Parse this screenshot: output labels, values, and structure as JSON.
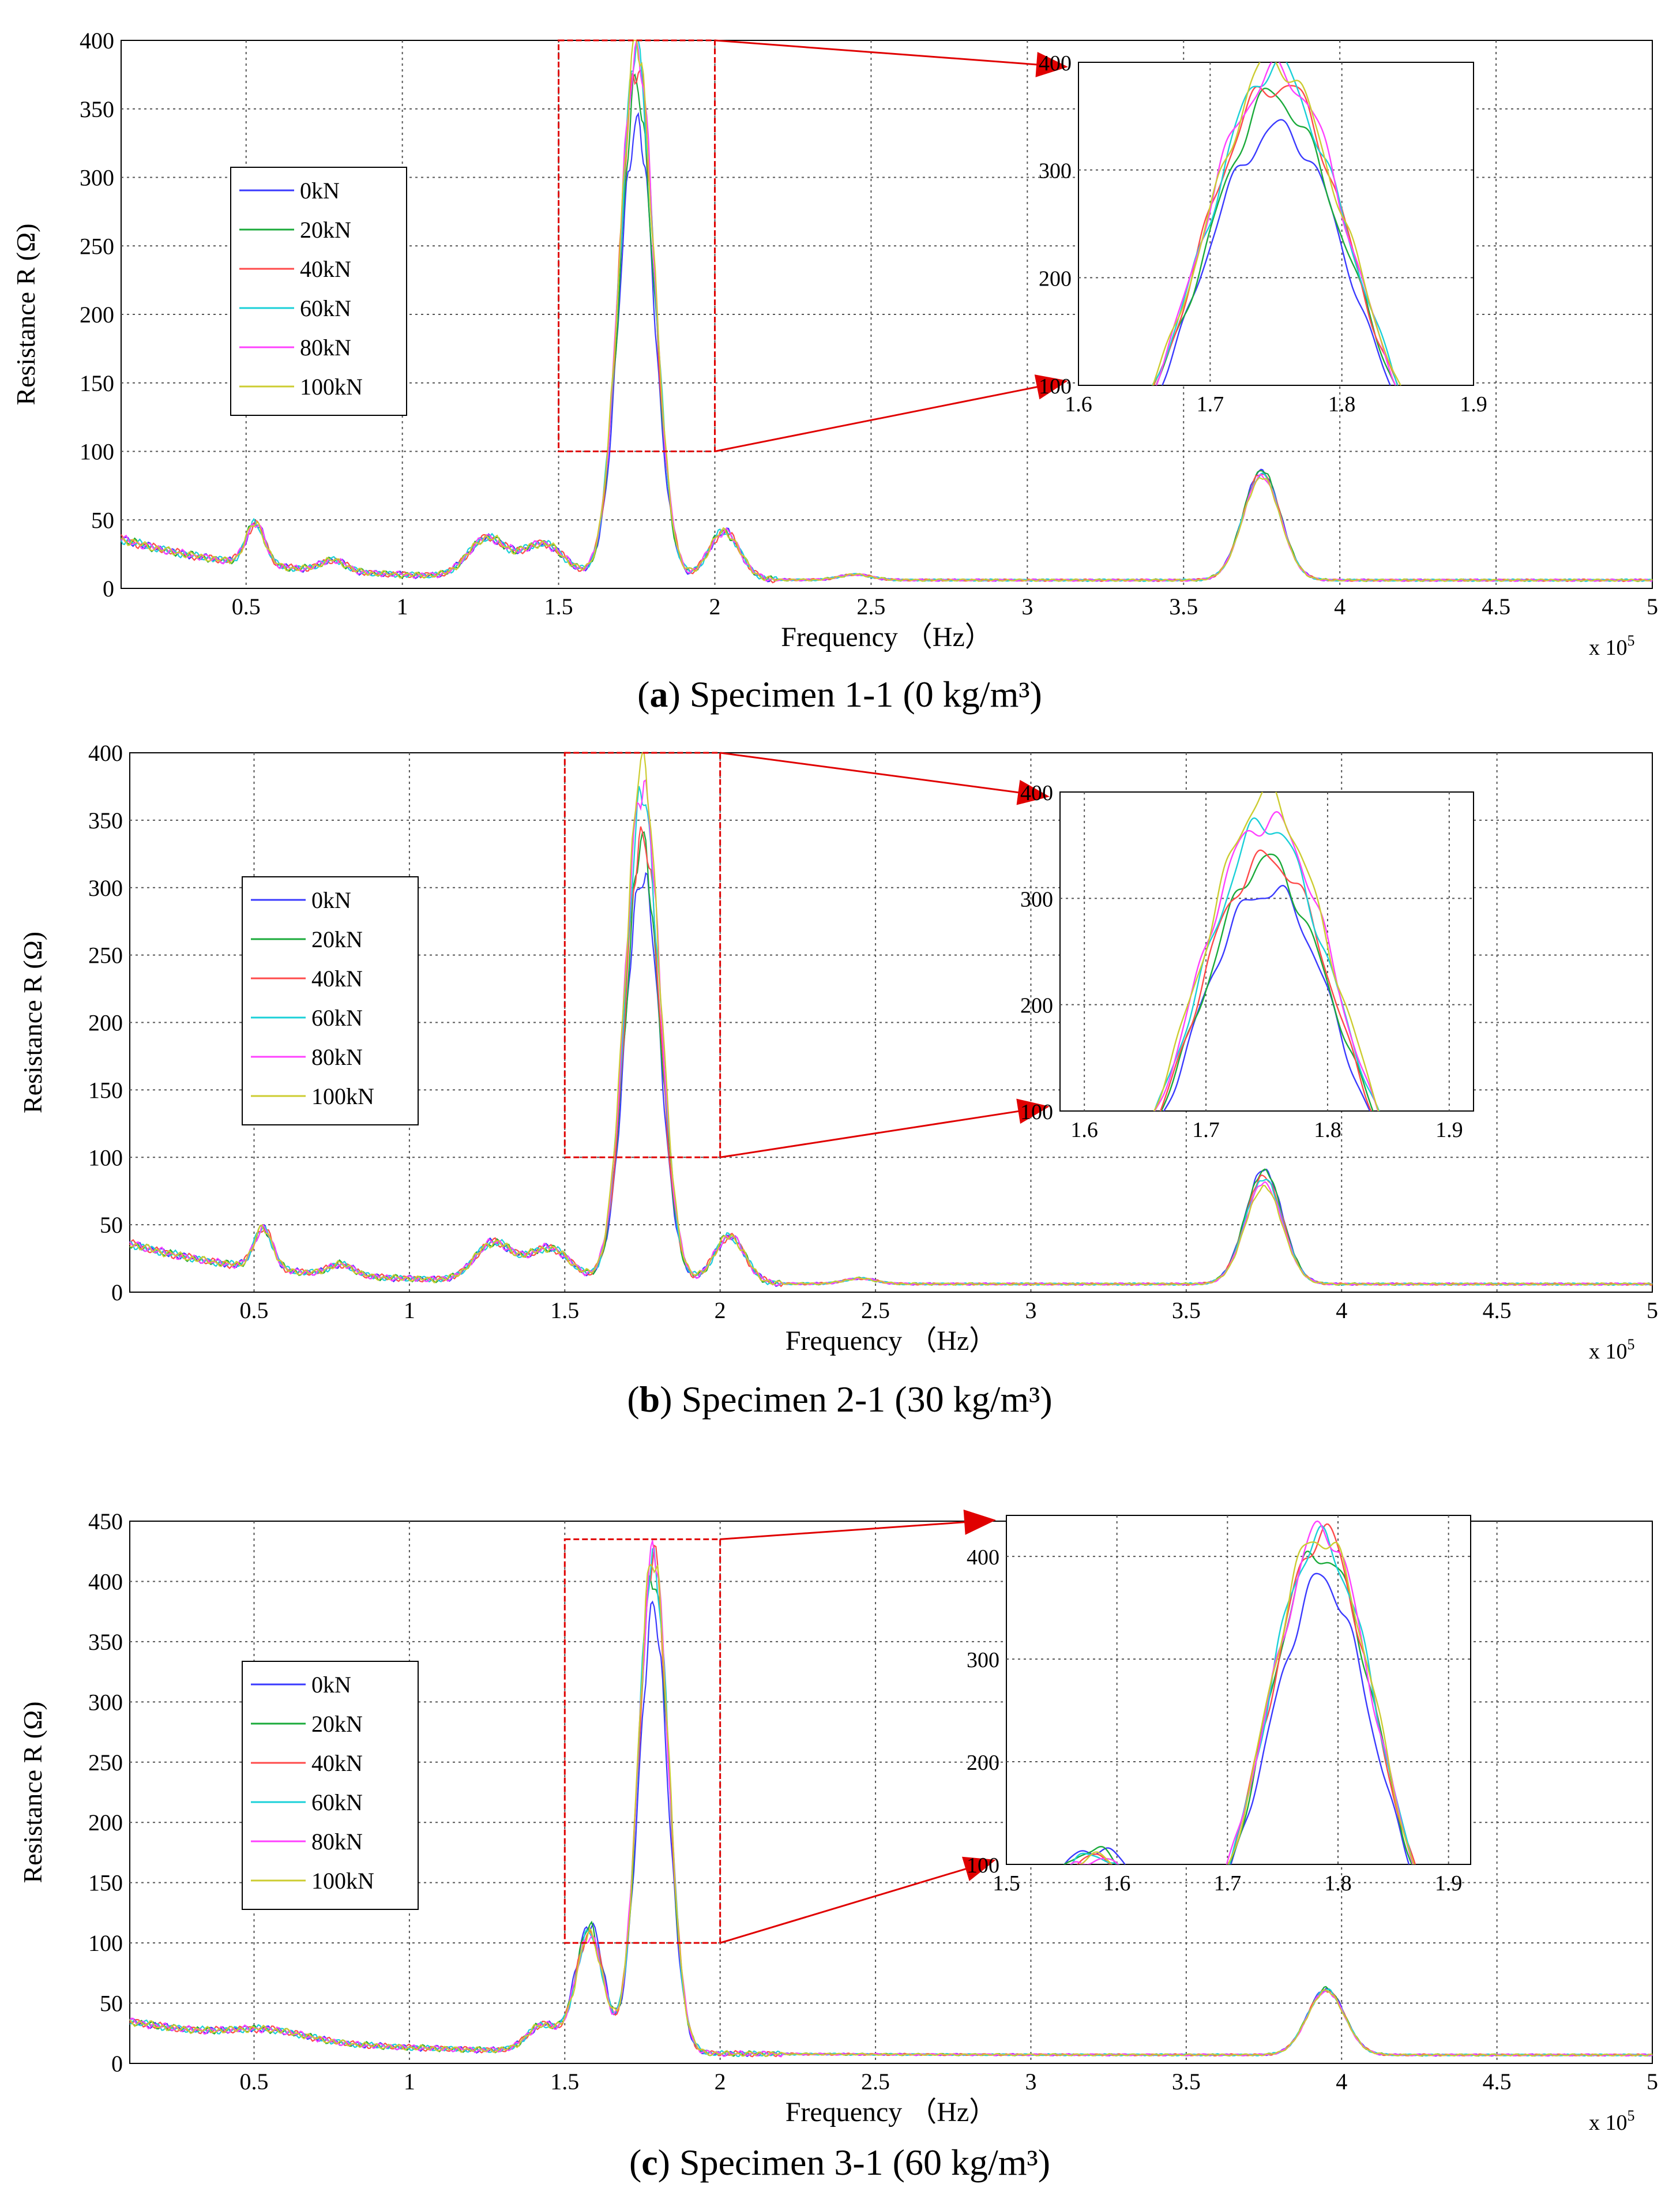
{
  "colors": {
    "series": [
      "#3a3aff",
      "#1aaa3a",
      "#ff4a4a",
      "#1ad0d8",
      "#ff40ff",
      "#cccc30"
    ],
    "highlight": "#e00000",
    "grid": "#555555"
  },
  "chart_data": [
    {
      "type": "line",
      "panel": "a",
      "caption": {
        "letter": "a",
        "text": " Specimen 1-1 (0 kg/m³)"
      },
      "xlabel": "Frequency （Hz）",
      "x_multiplier": "x 10",
      "x_multiplier_exp": "5",
      "ylabel": "Resistance R (Ω)",
      "xlim": [
        0.1,
        5
      ],
      "ylim": [
        0,
        400
      ],
      "x_ticks": [
        0.5,
        1,
        1.5,
        2,
        2.5,
        3,
        3.5,
        4,
        4.5,
        5
      ],
      "x_tick_labels": [
        "0.5",
        "1",
        "1.5",
        "2",
        "2.5",
        "3",
        "3.5",
        "4",
        "4.5",
        "5"
      ],
      "y_ticks": [
        0,
        50,
        100,
        150,
        200,
        250,
        300,
        350,
        400
      ],
      "y_tick_labels": [
        "0",
        "50",
        "100",
        "150",
        "200",
        "250",
        "300",
        "350",
        "400"
      ],
      "legend": [
        "0kN",
        "20kN",
        "40kN",
        "60kN",
        "80kN",
        "100kN"
      ],
      "legend_position": "left",
      "highlight_box": {
        "x": [
          1.5,
          2.0
        ],
        "y": [
          100,
          400
        ]
      },
      "peak1": {
        "center": 1.75,
        "heights": [
          335,
          358,
          378,
          385,
          388,
          390
        ]
      },
      "peak2": {
        "center": 3.75,
        "heights": [
          80,
          80,
          78,
          77,
          76,
          75
        ]
      },
      "inset": {
        "xlim": [
          1.6,
          1.9
        ],
        "ylim": [
          100,
          400
        ],
        "x_ticks": [
          1.6,
          1.7,
          1.8,
          1.9
        ],
        "x_tick_labels": [
          "1.6",
          "1.7",
          "1.8",
          "1.9"
        ],
        "y_ticks": [
          100,
          200,
          300,
          400
        ],
        "y_tick_labels": [
          "100",
          "200",
          "300",
          "400"
        ]
      }
    },
    {
      "type": "line",
      "panel": "b",
      "caption": {
        "letter": "b",
        "text": " Specimen 2-1 (30 kg/m³)"
      },
      "xlabel": "Frequency （Hz）",
      "x_multiplier": "x 10",
      "x_multiplier_exp": "5",
      "ylabel": "Resistance R (Ω)",
      "xlim": [
        0.1,
        5
      ],
      "ylim": [
        0,
        400
      ],
      "x_ticks": [
        0.5,
        1,
        1.5,
        2,
        2.5,
        3,
        3.5,
        4,
        4.5,
        5
      ],
      "x_tick_labels": [
        "0.5",
        "1",
        "1.5",
        "2",
        "2.5",
        "3",
        "3.5",
        "4",
        "4.5",
        "5"
      ],
      "y_ticks": [
        0,
        50,
        100,
        150,
        200,
        250,
        300,
        350,
        400
      ],
      "y_tick_labels": [
        "0",
        "50",
        "100",
        "150",
        "200",
        "250",
        "300",
        "350",
        "400"
      ],
      "legend": [
        "0kN",
        "20kN",
        "40kN",
        "60kN",
        "80kN",
        "100kN"
      ],
      "legend_position": "left",
      "highlight_box": {
        "x": [
          1.5,
          2.0
        ],
        "y": [
          100,
          400
        ]
      },
      "peak1": {
        "center": 1.75,
        "heights": [
          305,
          325,
          335,
          360,
          372,
          385
        ]
      },
      "peak2": {
        "center": 3.75,
        "heights": [
          85,
          84,
          80,
          78,
          75,
          72
        ]
      },
      "inset": {
        "xlim": [
          1.58,
          1.92
        ],
        "ylim": [
          100,
          400
        ],
        "x_ticks": [
          1.6,
          1.7,
          1.8,
          1.9
        ],
        "x_tick_labels": [
          "1.6",
          "1.7",
          "1.8",
          "1.9"
        ],
        "y_ticks": [
          100,
          200,
          300,
          400
        ],
        "y_tick_labels": [
          "100",
          "200",
          "300",
          "400"
        ]
      }
    },
    {
      "type": "line",
      "panel": "c",
      "caption": {
        "letter": "c",
        "text": " Specimen 3-1 (60 kg/m³)"
      },
      "xlabel": "Frequency （Hz）",
      "x_multiplier": "x 10",
      "x_multiplier_exp": "5",
      "ylabel": "Resistance R (Ω)",
      "xlim": [
        0.1,
        5
      ],
      "ylim": [
        0,
        450
      ],
      "x_ticks": [
        0.5,
        1,
        1.5,
        2,
        2.5,
        3,
        3.5,
        4,
        4.5,
        5
      ],
      "x_tick_labels": [
        "0.5",
        "1",
        "1.5",
        "2",
        "2.5",
        "3",
        "3.5",
        "4",
        "4.5",
        "5"
      ],
      "y_ticks": [
        0,
        50,
        100,
        150,
        200,
        250,
        300,
        350,
        400,
        450
      ],
      "y_tick_labels": [
        "0",
        "50",
        "100",
        "150",
        "200",
        "250",
        "300",
        "350",
        "400",
        "450"
      ],
      "legend": [
        "0kN",
        "20kN",
        "40kN",
        "60kN",
        "80kN",
        "100kN"
      ],
      "legend_position": "left",
      "highlight_box": {
        "x": [
          1.5,
          2.0
        ],
        "y": [
          100,
          435
        ]
      },
      "peak1": {
        "center": 1.785,
        "heights": [
          365,
          400,
          410,
          412,
          414,
          416
        ]
      },
      "peak2": {
        "center": 3.95,
        "heights": [
          55,
          55,
          54,
          54,
          53,
          53
        ]
      },
      "inset": {
        "xlim": [
          1.5,
          1.92
        ],
        "ylim": [
          100,
          440
        ],
        "x_ticks": [
          1.5,
          1.6,
          1.7,
          1.8,
          1.9
        ],
        "x_tick_labels": [
          "1.5",
          "1.6",
          "1.7",
          "1.8",
          "1.9"
        ],
        "y_ticks": [
          100,
          200,
          300,
          400
        ],
        "y_tick_labels": [
          "100",
          "200",
          "300",
          "400"
        ]
      }
    }
  ]
}
